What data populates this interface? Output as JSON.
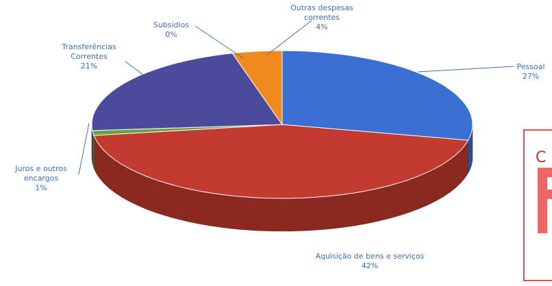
{
  "chart_data": {
    "type": "pie",
    "categories": [
      "Pessoal",
      "Aquisição de bens e serviços",
      "Juros e outros encargos",
      "Transferências Correntes",
      "Subsídios",
      "Outras despesas correntes"
    ],
    "values": [
      27,
      42,
      1,
      21,
      0,
      4
    ],
    "value_labels": [
      "27%",
      "42%",
      "1%",
      "21%",
      "0%",
      "4%"
    ],
    "colors": [
      "#3b6fd1",
      "#c33a2e",
      "#6aa33a",
      "#4c4a9c",
      "#3fa0c4",
      "#f08a1c"
    ],
    "stamp": "C"
  }
}
